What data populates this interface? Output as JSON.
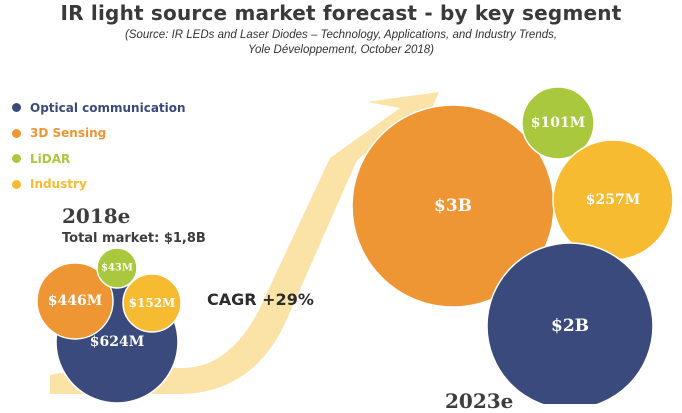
{
  "title": "IR light source market forecast - by key segment",
  "subtitle_line1": "(Source: IR LEDs and Laser Diodes – Technology, Applications, and Industry Trends,",
  "subtitle_line2": "Yole Développement, October 2018)",
  "legend": [
    {
      "label": "Optical communication",
      "color": "#3a4a7c"
    },
    {
      "label": "3D Sensing",
      "color": "#ef9634"
    },
    {
      "label": "LiDAR",
      "color": "#a9c83e"
    },
    {
      "label": "Industry",
      "color": "#f7bb32"
    }
  ],
  "cagr": "CAGR +29%",
  "chart_data": {
    "type": "bubble",
    "title": "IR light source market forecast - by key segment",
    "groups": [
      {
        "year": "2018e",
        "total": "Total market: $1,8B",
        "bubbles": [
          {
            "segment": "Optical communication",
            "label": "$624M",
            "value_musd": 624,
            "color": "#3a4a7c"
          },
          {
            "segment": "3D Sensing",
            "label": "$446M",
            "value_musd": 446,
            "color": "#ef9634"
          },
          {
            "segment": "LiDAR",
            "label": "$43M",
            "value_musd": 43,
            "color": "#a9c83e"
          },
          {
            "segment": "Industry",
            "label": "$152M",
            "value_musd": 152,
            "color": "#f7bb32"
          }
        ]
      },
      {
        "year": "2023e",
        "bubbles": [
          {
            "segment": "3D Sensing",
            "label": "$3B",
            "value_musd": 3000,
            "color": "#ef9634"
          },
          {
            "segment": "LiDAR",
            "label": "$101M",
            "value_musd": 101,
            "color": "#a9c83e"
          },
          {
            "segment": "Industry",
            "label": "$257M",
            "value_musd": 257,
            "color": "#f7bb32"
          },
          {
            "segment": "Optical communication",
            "label": "$2B",
            "value_musd": 2000,
            "color": "#3a4a7c"
          }
        ]
      }
    ]
  }
}
